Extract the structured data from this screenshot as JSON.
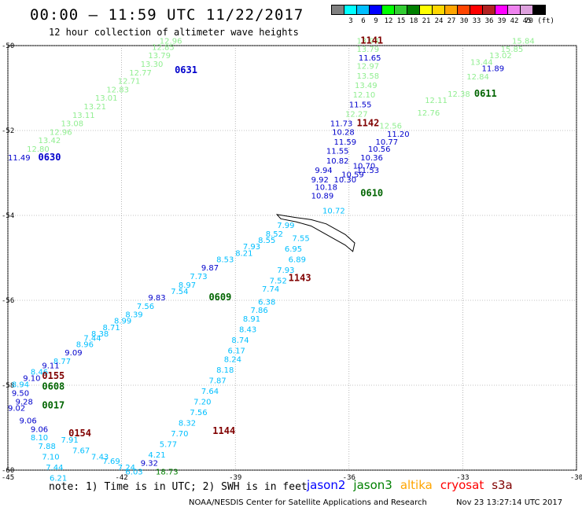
{
  "title": "00:00 – 11:59 UTC 11/22/2017",
  "subtitle": "12 hour collection of altimeter wave heights",
  "colorbar": {
    "colors": [
      "#808080",
      "#00ffff",
      "#00bfff",
      "#0000ff",
      "#00ff00",
      "#32cd32",
      "#008000",
      "#ffff00",
      "#ffd700",
      "#ffa500",
      "#ff4500",
      "#ff0000",
      "#b22222",
      "#ff00ff",
      "#ee82ee",
      "#dda0dd",
      "#000000"
    ],
    "labels": [
      "3",
      "6",
      "9",
      "12",
      "15",
      "18",
      "21",
      "24",
      "27",
      "30",
      "33",
      "36",
      "39",
      "42",
      "45",
      "70 (ft)"
    ]
  },
  "axes": {
    "x_ticks": [
      "-45",
      "-42",
      "-39",
      "-36",
      "-33",
      "-30"
    ],
    "y_ticks": [
      "-50",
      "-52",
      "-54",
      "-56",
      "-58",
      "-60"
    ]
  },
  "track_labels": [
    {
      "text": "0631",
      "color": "#0000cc",
      "lon": -40.6,
      "lat": -50.65
    },
    {
      "text": "0630",
      "color": "#0000cc",
      "lon": -44.2,
      "lat": -52.7
    },
    {
      "text": "1141",
      "color": "#800000",
      "lon": -35.7,
      "lat": -49.95
    },
    {
      "text": "1142",
      "color": "#800000",
      "lon": -35.8,
      "lat": -51.9
    },
    {
      "text": "0611",
      "color": "#006400",
      "lon": -32.7,
      "lat": -51.2
    },
    {
      "text": "0610",
      "color": "#006400",
      "lon": -35.7,
      "lat": -53.55
    },
    {
      "text": "0609",
      "color": "#006400",
      "lon": -39.7,
      "lat": -56.0
    },
    {
      "text": "1143",
      "color": "#800000",
      "lon": -37.6,
      "lat": -55.55
    },
    {
      "text": "0155",
      "color": "#800000",
      "lon": -44.1,
      "lat": -57.85
    },
    {
      "text": "0608",
      "color": "#006400",
      "lon": -44.1,
      "lat": -58.1
    },
    {
      "text": "0017",
      "color": "#006400",
      "lon": -44.1,
      "lat": -58.55
    },
    {
      "text": "0154",
      "color": "#800000",
      "lon": -43.4,
      "lat": -59.2
    },
    {
      "text": "1144",
      "color": "#800000",
      "lon": -39.6,
      "lat": -59.15
    }
  ],
  "points": [
    {
      "v": "13.94",
      "c": "#90ee90",
      "lon": -35.8,
      "lat": -49.95
    },
    {
      "v": "13.79",
      "c": "#90ee90",
      "lon": -35.8,
      "lat": -50.15
    },
    {
      "v": "11.65",
      "c": "#0000cc",
      "lon": -35.75,
      "lat": -50.35
    },
    {
      "v": "12.97",
      "c": "#90ee90",
      "lon": -35.8,
      "lat": -50.55
    },
    {
      "v": "13.58",
      "c": "#90ee90",
      "lon": -35.8,
      "lat": -50.78
    },
    {
      "v": "13.49",
      "c": "#90ee90",
      "lon": -35.85,
      "lat": -51.0
    },
    {
      "v": "12.10",
      "c": "#90ee90",
      "lon": -35.9,
      "lat": -51.22
    },
    {
      "v": "11.55",
      "c": "#0000cc",
      "lon": -36.0,
      "lat": -51.45
    },
    {
      "v": "12.27",
      "c": "#90ee90",
      "lon": -36.1,
      "lat": -51.68
    },
    {
      "v": "11.73",
      "c": "#0000cc",
      "lon": -36.5,
      "lat": -51.9
    },
    {
      "v": "10.28",
      "c": "#0000cc",
      "lon": -36.45,
      "lat": -52.1
    },
    {
      "v": "11.59",
      "c": "#0000cc",
      "lon": -36.4,
      "lat": -52.33
    },
    {
      "v": "11.55",
      "c": "#0000cc",
      "lon": -36.6,
      "lat": -52.55
    },
    {
      "v": "10.82",
      "c": "#0000cc",
      "lon": -36.6,
      "lat": -52.78
    },
    {
      "v": "9.94",
      "c": "#0000cc",
      "lon": -36.9,
      "lat": -53.0
    },
    {
      "v": "9.92",
      "c": "#0000cc",
      "lon": -37.0,
      "lat": -53.22
    },
    {
      "v": "10.30",
      "c": "#0000cc",
      "lon": -36.4,
      "lat": -53.22
    },
    {
      "v": "10.18",
      "c": "#0000cc",
      "lon": -36.9,
      "lat": -53.4
    },
    {
      "v": "10.59",
      "c": "#0000cc",
      "lon": -36.2,
      "lat": -53.1
    },
    {
      "v": "10.70",
      "c": "#0000cc",
      "lon": -35.9,
      "lat": -52.9
    },
    {
      "v": "11.53",
      "c": "#0000cc",
      "lon": -35.8,
      "lat": -53.0
    },
    {
      "v": "10.36",
      "c": "#0000cc",
      "lon": -35.7,
      "lat": -52.7
    },
    {
      "v": "10.56",
      "c": "#0000cc",
      "lon": -35.5,
      "lat": -52.5
    },
    {
      "v": "10.77",
      "c": "#0000cc",
      "lon": -35.3,
      "lat": -52.33
    },
    {
      "v": "11.20",
      "c": "#0000cc",
      "lon": -35.0,
      "lat": -52.15
    },
    {
      "v": "12.56",
      "c": "#90ee90",
      "lon": -35.2,
      "lat": -51.95
    },
    {
      "v": "12.76",
      "c": "#90ee90",
      "lon": -34.2,
      "lat": -51.65
    },
    {
      "v": "12.11",
      "c": "#90ee90",
      "lon": -34.0,
      "lat": -51.35
    },
    {
      "v": "12.38",
      "c": "#90ee90",
      "lon": -33.4,
      "lat": -51.2
    },
    {
      "v": "12.84",
      "c": "#90ee90",
      "lon": -32.9,
      "lat": -50.8
    },
    {
      "v": "13.44",
      "c": "#90ee90",
      "lon": -32.8,
      "lat": -50.45
    },
    {
      "v": "11.89",
      "c": "#0000cc",
      "lon": -32.5,
      "lat": -50.6
    },
    {
      "v": "13.02",
      "c": "#90ee90",
      "lon": -32.3,
      "lat": -50.3
    },
    {
      "v": "15.85",
      "c": "#90ee90",
      "lon": -32.0,
      "lat": -50.15
    },
    {
      "v": "15.84",
      "c": "#90ee90",
      "lon": -31.7,
      "lat": -49.95
    },
    {
      "v": "10.89",
      "c": "#0000cc",
      "lon": -37.0,
      "lat": -53.6
    },
    {
      "v": "10.72",
      "c": "#00bfff",
      "lon": -36.7,
      "lat": -53.95
    },
    {
      "v": "7.99",
      "c": "#00bfff",
      "lon": -37.9,
      "lat": -54.3
    },
    {
      "v": "8.52",
      "c": "#00bfff",
      "lon": -38.2,
      "lat": -54.5
    },
    {
      "v": "7.55",
      "c": "#00bfff",
      "lon": -37.5,
      "lat": -54.6
    },
    {
      "v": "8.55",
      "c": "#00bfff",
      "lon": -38.4,
      "lat": -54.65
    },
    {
      "v": "7.93",
      "c": "#00bfff",
      "lon": -38.8,
      "lat": -54.8
    },
    {
      "v": "6.95",
      "c": "#00bfff",
      "lon": -37.7,
      "lat": -54.85
    },
    {
      "v": "8.21",
      "c": "#00bfff",
      "lon": -39.0,
      "lat": -54.95
    },
    {
      "v": "6.89",
      "c": "#00bfff",
      "lon": -37.6,
      "lat": -55.1
    },
    {
      "v": "8.53",
      "c": "#00bfff",
      "lon": -39.5,
      "lat": -55.1
    },
    {
      "v": "7.93",
      "c": "#00bfff",
      "lon": -37.9,
      "lat": -55.35
    },
    {
      "v": "9.87",
      "c": "#0000cc",
      "lon": -39.9,
      "lat": -55.3
    },
    {
      "v": "7.73",
      "c": "#00bfff",
      "lon": -40.2,
      "lat": -55.5
    },
    {
      "v": "7.52",
      "c": "#00bfff",
      "lon": -38.1,
      "lat": -55.6
    },
    {
      "v": "8.97",
      "c": "#00bfff",
      "lon": -40.5,
      "lat": -55.7
    },
    {
      "v": "7.74",
      "c": "#00bfff",
      "lon": -38.3,
      "lat": -55.8
    },
    {
      "v": "7.54",
      "c": "#00bfff",
      "lon": -40.7,
      "lat": -55.85
    },
    {
      "v": "9.83",
      "c": "#0000cc",
      "lon": -41.3,
      "lat": -56.0
    },
    {
      "v": "6.38",
      "c": "#00bfff",
      "lon": -38.4,
      "lat": -56.1
    },
    {
      "v": "7.56",
      "c": "#00bfff",
      "lon": -41.6,
      "lat": -56.2
    },
    {
      "v": "7.86",
      "c": "#00bfff",
      "lon": -38.6,
      "lat": -56.3
    },
    {
      "v": "8.39",
      "c": "#00bfff",
      "lon": -41.9,
      "lat": -56.4
    },
    {
      "v": "8.91",
      "c": "#00bfff",
      "lon": -38.8,
      "lat": -56.5
    },
    {
      "v": "8.99",
      "c": "#00bfff",
      "lon": -42.2,
      "lat": -56.55
    },
    {
      "v": "8.71",
      "c": "#00bfff",
      "lon": -42.5,
      "lat": -56.7
    },
    {
      "v": "8.43",
      "c": "#00bfff",
      "lon": -38.9,
      "lat": -56.75
    },
    {
      "v": "8.38",
      "c": "#00bfff",
      "lon": -42.8,
      "lat": -56.85
    },
    {
      "v": "7.44",
      "c": "#00bfff",
      "lon": -43.0,
      "lat": -56.95
    },
    {
      "v": "8.74",
      "c": "#00bfff",
      "lon": -39.1,
      "lat": -57.0
    },
    {
      "v": "8.96",
      "c": "#00bfff",
      "lon": -43.2,
      "lat": -57.1
    },
    {
      "v": "6.17",
      "c": "#00bfff",
      "lon": -39.2,
      "lat": -57.25
    },
    {
      "v": "9.09",
      "c": "#0000cc",
      "lon": -43.5,
      "lat": -57.3
    },
    {
      "v": "8.24",
      "c": "#00bfff",
      "lon": -39.3,
      "lat": -57.45
    },
    {
      "v": "8.77",
      "c": "#00bfff",
      "lon": -43.8,
      "lat": -57.5
    },
    {
      "v": "9.11",
      "c": "#0000cc",
      "lon": -44.1,
      "lat": -57.6
    },
    {
      "v": "8.18",
      "c": "#00bfff",
      "lon": -39.5,
      "lat": -57.7
    },
    {
      "v": "8.46",
      "c": "#00bfff",
      "lon": -44.4,
      "lat": -57.75
    },
    {
      "v": "9.10",
      "c": "#0000cc",
      "lon": -44.6,
      "lat": -57.9
    },
    {
      "v": "7.87",
      "c": "#00bfff",
      "lon": -39.7,
      "lat": -57.95
    },
    {
      "v": "8.94",
      "c": "#00bfff",
      "lon": -44.9,
      "lat": -58.05
    },
    {
      "v": "7.64",
      "c": "#00bfff",
      "lon": -39.9,
      "lat": -58.2
    },
    {
      "v": "9.50",
      "c": "#0000cc",
      "lon": -44.9,
      "lat": -58.25
    },
    {
      "v": "7.20",
      "c": "#00bfff",
      "lon": -40.1,
      "lat": -58.45
    },
    {
      "v": "9.28",
      "c": "#0000cc",
      "lon": -44.8,
      "lat": -58.45
    },
    {
      "v": "9.02",
      "c": "#0000cc",
      "lon": -45.0,
      "lat": -58.6
    },
    {
      "v": "7.56",
      "c": "#00bfff",
      "lon": -40.2,
      "lat": -58.7
    },
    {
      "v": "9.06",
      "c": "#0000cc",
      "lon": -44.7,
      "lat": -58.9
    },
    {
      "v": "8.32",
      "c": "#00bfff",
      "lon": -40.5,
      "lat": -58.95
    },
    {
      "v": "9.06",
      "c": "#0000cc",
      "lon": -44.4,
      "lat": -59.1
    },
    {
      "v": "8.10",
      "c": "#00bfff",
      "lon": -44.4,
      "lat": -59.3
    },
    {
      "v": "7.70",
      "c": "#00bfff",
      "lon": -40.7,
      "lat": -59.2
    },
    {
      "v": "7.91",
      "c": "#00bfff",
      "lon": -43.6,
      "lat": -59.35
    },
    {
      "v": "7.88",
      "c": "#00bfff",
      "lon": -44.2,
      "lat": -59.5
    },
    {
      "v": "5.77",
      "c": "#00bfff",
      "lon": -41.0,
      "lat": -59.45
    },
    {
      "v": "7.67",
      "c": "#00bfff",
      "lon": -43.3,
      "lat": -59.6
    },
    {
      "v": "4.21",
      "c": "#00bfff",
      "lon": -41.3,
      "lat": -59.7
    },
    {
      "v": "7.10",
      "c": "#00bfff",
      "lon": -44.1,
      "lat": -59.75
    },
    {
      "v": "7.43",
      "c": "#00bfff",
      "lon": -42.8,
      "lat": -59.75
    },
    {
      "v": "9.32",
      "c": "#0000cc",
      "lon": -41.5,
      "lat": -59.9
    },
    {
      "v": "7.69",
      "c": "#00bfff",
      "lon": -42.5,
      "lat": -59.85
    },
    {
      "v": "7.24",
      "c": "#00bfff",
      "lon": -42.1,
      "lat": -60.0
    },
    {
      "v": "7.44",
      "c": "#00bfff",
      "lon": -44.0,
      "lat": -60.0
    },
    {
      "v": "6.03",
      "c": "#00bfff",
      "lon": -41.9,
      "lat": -60.1
    },
    {
      "v": "18.73",
      "c": "#008000",
      "lon": -41.1,
      "lat": -60.1
    },
    {
      "v": "6.21",
      "c": "#00bfff",
      "lon": -43.9,
      "lat": -60.25
    },
    {
      "v": "11.49",
      "c": "#0000cc",
      "lon": -45.0,
      "lat": -52.7
    },
    {
      "v": "12.96",
      "c": "#90ee90",
      "lon": -41.0,
      "lat": -49.95
    },
    {
      "v": "12.85",
      "c": "#90ee90",
      "lon": -41.2,
      "lat": -50.1
    },
    {
      "v": "13.79",
      "c": "#90ee90",
      "lon": -41.3,
      "lat": -50.3
    },
    {
      "v": "13.30",
      "c": "#90ee90",
      "lon": -41.5,
      "lat": -50.5
    },
    {
      "v": "12.77",
      "c": "#90ee90",
      "lon": -41.8,
      "lat": -50.7
    },
    {
      "v": "12.71",
      "c": "#90ee90",
      "lon": -42.1,
      "lat": -50.9
    },
    {
      "v": "12.83",
      "c": "#90ee90",
      "lon": -42.4,
      "lat": -51.1
    },
    {
      "v": "13.01",
      "c": "#90ee90",
      "lon": -42.7,
      "lat": -51.3
    },
    {
      "v": "13.21",
      "c": "#90ee90",
      "lon": -43.0,
      "lat": -51.5
    },
    {
      "v": "13.11",
      "c": "#90ee90",
      "lon": -43.3,
      "lat": -51.7
    },
    {
      "v": "13.08",
      "c": "#90ee90",
      "lon": -43.6,
      "lat": -51.9
    },
    {
      "v": "12.96",
      "c": "#90ee90",
      "lon": -43.9,
      "lat": -52.1
    },
    {
      "v": "13.42",
      "c": "#90ee90",
      "lon": -44.2,
      "lat": -52.3
    },
    {
      "v": "12.80",
      "c": "#90ee90",
      "lon": -44.5,
      "lat": -52.5
    }
  ],
  "note": "note: 1) Time is in UTC; 2) SWH is in feet",
  "legend": [
    {
      "text": "jason2",
      "color": "#0000ff"
    },
    {
      "text": "jason3",
      "color": "#008000"
    },
    {
      "text": "altika",
      "color": "#ffa500"
    },
    {
      "text": "cryosat",
      "color": "#ff0000"
    },
    {
      "text": "s3a",
      "color": "#800000"
    }
  ],
  "footer": "NOAA/NESDIS Center for Satellite Applications and Research",
  "timestamp": "Nov 23 13:27:14 UTC 2017"
}
